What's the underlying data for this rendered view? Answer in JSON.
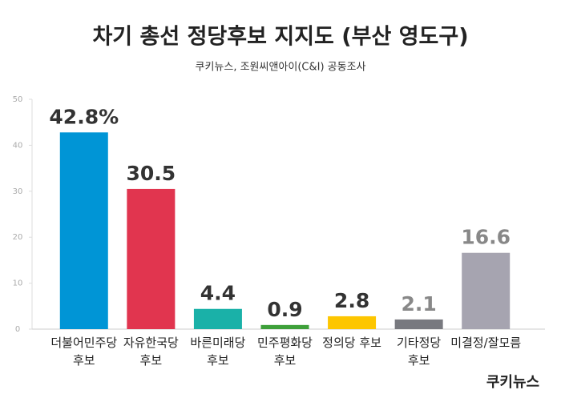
{
  "chart_data": {
    "type": "bar",
    "title": "차기 총선 정당후보 지지도 (부산 영도구)",
    "subtitle": "쿠키뉴스, 조원씨앤아이(C&I) 공동조사",
    "categories": [
      "더불어민주당\n후보",
      "자유한국당\n후보",
      "바른미래당\n후보",
      "민주평화당\n후보",
      "정의당 후보",
      "기타정당\n후보",
      "미결정/잘모름"
    ],
    "values": [
      42.8,
      30.5,
      4.4,
      0.9,
      2.8,
      2.1,
      16.6
    ],
    "value_labels": [
      "42.8%",
      "30.5",
      "4.4",
      "0.9",
      "2.8",
      "2.1",
      "16.6"
    ],
    "colors": [
      "#0095d6",
      "#e1354f",
      "#1ab1a8",
      "#3ea03a",
      "#fdc600",
      "#78797f",
      "#a6a4b0"
    ],
    "label_colors": [
      "#333333",
      "#333333",
      "#333333",
      "#333333",
      "#333333",
      "#888888",
      "#888888"
    ],
    "ylim": [
      0,
      50
    ],
    "yticks": [
      0,
      10,
      20,
      30,
      40,
      50
    ],
    "grid": false,
    "logo": "쿠키뉴스"
  }
}
